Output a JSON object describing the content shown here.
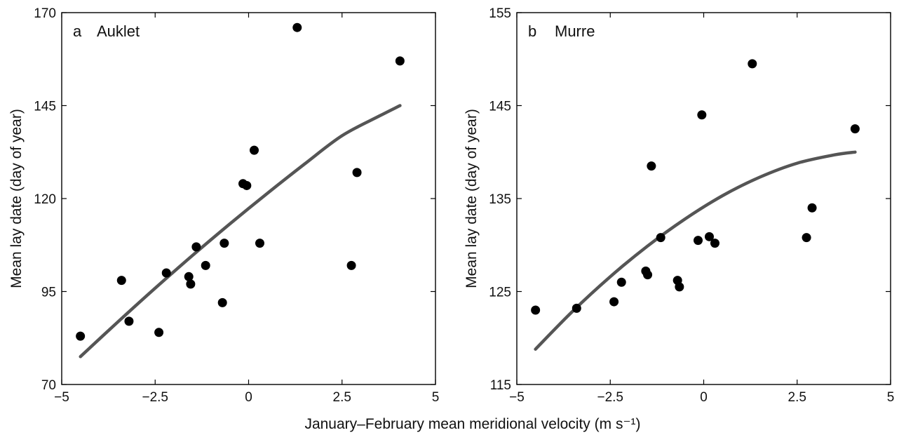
{
  "xlabel": "January–February mean meridional velocity (m s⁻¹)",
  "chart_data": [
    {
      "type": "scatter",
      "panel_letter": "a",
      "title": "Auklet",
      "xlabel": "January–February mean meridional velocity (m s⁻¹)",
      "ylabel": "Mean lay date (day of year)",
      "xlim": [
        -5,
        5
      ],
      "ylim": [
        70,
        170
      ],
      "xticks": [
        "−5",
        "−2.5",
        "0",
        "2.5",
        "5"
      ],
      "yticks": [
        "70",
        "95",
        "120",
        "145",
        "170"
      ],
      "grid": false,
      "points": [
        {
          "x": -4.5,
          "y": 83
        },
        {
          "x": -3.4,
          "y": 98
        },
        {
          "x": -3.2,
          "y": 87
        },
        {
          "x": -2.4,
          "y": 84
        },
        {
          "x": -2.2,
          "y": 100
        },
        {
          "x": -1.6,
          "y": 99
        },
        {
          "x": -1.55,
          "y": 97
        },
        {
          "x": -1.4,
          "y": 107
        },
        {
          "x": -1.15,
          "y": 102
        },
        {
          "x": -0.7,
          "y": 92
        },
        {
          "x": -0.65,
          "y": 108
        },
        {
          "x": -0.15,
          "y": 124
        },
        {
          "x": -0.05,
          "y": 123.5
        },
        {
          "x": 0.15,
          "y": 133
        },
        {
          "x": 0.3,
          "y": 108
        },
        {
          "x": 1.3,
          "y": 166
        },
        {
          "x": 2.75,
          "y": 102
        },
        {
          "x": 2.9,
          "y": 127
        },
        {
          "x": 4.05,
          "y": 157
        }
      ],
      "fit": {
        "x": [
          -4.5,
          -3.5,
          -2.5,
          -1.5,
          -0.5,
          0.5,
          1.5,
          2.5,
          3.5,
          4.05
        ],
        "y": [
          77.5,
          86.8,
          95.9,
          104.7,
          113.2,
          121.4,
          129.3,
          136.9,
          142.2,
          145
        ]
      }
    },
    {
      "type": "scatter",
      "panel_letter": "b",
      "title": "Murre",
      "xlabel": "January–February mean meridional velocity (m s⁻¹)",
      "ylabel": "Mean lay date (day of year)",
      "xlim": [
        -5,
        5
      ],
      "ylim": [
        115,
        155
      ],
      "xticks": [
        "−5",
        "−2.5",
        "0",
        "2.5",
        "5"
      ],
      "yticks": [
        "115",
        "125",
        "135",
        "145",
        "155"
      ],
      "grid": false,
      "points": [
        {
          "x": -4.5,
          "y": 123
        },
        {
          "x": -3.4,
          "y": 123.2
        },
        {
          "x": -2.4,
          "y": 123.9
        },
        {
          "x": -2.2,
          "y": 126
        },
        {
          "x": -1.55,
          "y": 127.2
        },
        {
          "x": -1.5,
          "y": 126.8
        },
        {
          "x": -1.4,
          "y": 138.5
        },
        {
          "x": -1.15,
          "y": 130.8
        },
        {
          "x": -0.7,
          "y": 126.2
        },
        {
          "x": -0.65,
          "y": 125.5
        },
        {
          "x": -0.15,
          "y": 130.5
        },
        {
          "x": -0.05,
          "y": 144
        },
        {
          "x": 0.15,
          "y": 130.9
        },
        {
          "x": 0.3,
          "y": 130.2
        },
        {
          "x": 1.3,
          "y": 149.5
        },
        {
          "x": 2.75,
          "y": 130.8
        },
        {
          "x": 2.9,
          "y": 134
        },
        {
          "x": 4.05,
          "y": 142.5
        }
      ],
      "fit": {
        "x": [
          -4.5,
          -3.5,
          -2.5,
          -1.5,
          -0.5,
          0.5,
          1.5,
          2.5,
          3.5,
          4.05
        ],
        "y": [
          118.8,
          122.9,
          126.6,
          129.9,
          132.8,
          135.3,
          137.3,
          138.8,
          139.7,
          140
        ]
      }
    }
  ]
}
